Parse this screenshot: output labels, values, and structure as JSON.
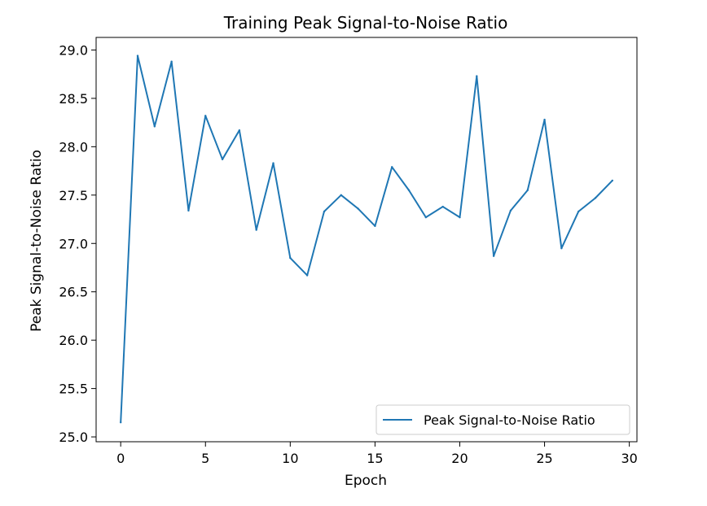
{
  "chart_data": {
    "type": "line",
    "title": "Training Peak Signal-to-Noise Ratio",
    "xlabel": "Epoch",
    "ylabel": "Peak Signal-to-Noise Ratio",
    "xlim": [
      -1.45,
      30.45
    ],
    "ylim": [
      24.95,
      29.13
    ],
    "xticks": [
      0,
      5,
      10,
      15,
      20,
      25,
      30
    ],
    "yticks": [
      25.0,
      25.5,
      26.0,
      26.5,
      27.0,
      27.5,
      28.0,
      28.5,
      29.0
    ],
    "xtick_labels": [
      "0",
      "5",
      "10",
      "15",
      "20",
      "25",
      "30"
    ],
    "ytick_labels": [
      "25.0",
      "25.5",
      "26.0",
      "26.5",
      "27.0",
      "27.5",
      "28.0",
      "28.5",
      "29.0"
    ],
    "grid": false,
    "legend_position": "lower-right",
    "series": [
      {
        "name": "Peak Signal-to-Noise Ratio",
        "color": "#1f77b4",
        "x": [
          0,
          1,
          2,
          3,
          4,
          5,
          6,
          7,
          8,
          9,
          10,
          11,
          12,
          13,
          14,
          15,
          16,
          17,
          18,
          19,
          20,
          21,
          22,
          23,
          24,
          25,
          26,
          27,
          28,
          29
        ],
        "y": [
          25.15,
          28.94,
          28.21,
          28.88,
          27.34,
          28.32,
          27.87,
          28.17,
          27.14,
          27.83,
          26.85,
          26.67,
          27.33,
          27.5,
          27.36,
          27.18,
          27.79,
          27.55,
          27.27,
          27.38,
          27.27,
          28.73,
          26.87,
          27.34,
          27.55,
          28.28,
          26.95,
          27.33,
          27.47,
          27.65
        ]
      }
    ]
  }
}
